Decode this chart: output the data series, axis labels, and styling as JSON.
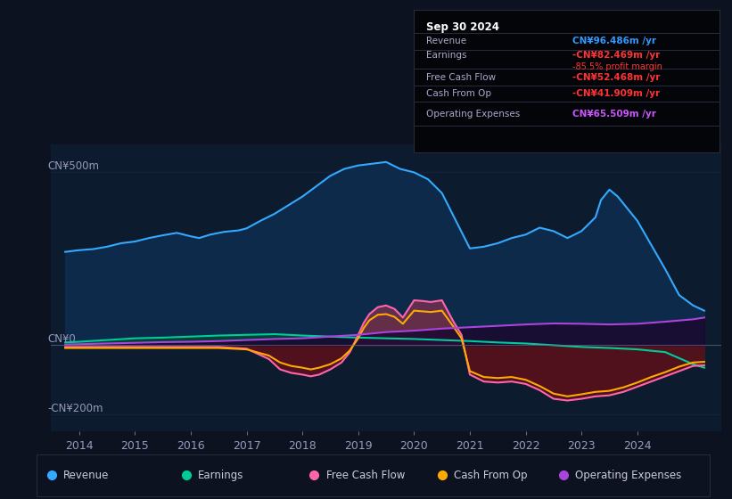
{
  "bg_color": "#0c1220",
  "plot_bg_color": "#0d1b2e",
  "grid_color": "#1e3050",
  "zero_line_color": "#666688",
  "ylabel_500": "CN¥500m",
  "ylabel_0": "CN¥0",
  "ylabel_neg200": "-CN¥200m",
  "ylim": [
    -250,
    580
  ],
  "xlim_start": 2013.5,
  "xlim_end": 2025.5,
  "xticks": [
    2014,
    2015,
    2016,
    2017,
    2018,
    2019,
    2020,
    2021,
    2022,
    2023,
    2024
  ],
  "info_box": {
    "date": "Sep 30 2024",
    "revenue_label": "Revenue",
    "revenue_value": "CN¥96.486m /yr",
    "revenue_color": "#3399ff",
    "earnings_label": "Earnings",
    "earnings_value": "-CN¥82.469m /yr",
    "earnings_color": "#ff3333",
    "margin_value": "-85.5% profit margin",
    "margin_color": "#ff3333",
    "fcf_label": "Free Cash Flow",
    "fcf_value": "-CN¥52.468m /yr",
    "fcf_color": "#ff3333",
    "cashop_label": "Cash From Op",
    "cashop_value": "-CN¥41.909m /yr",
    "cashop_color": "#ff3333",
    "opex_label": "Operating Expenses",
    "opex_value": "CN¥65.509m /yr",
    "opex_color": "#cc55ff"
  },
  "legend": [
    {
      "label": "Revenue",
      "color": "#33aaff"
    },
    {
      "label": "Earnings",
      "color": "#00cc99"
    },
    {
      "label": "Free Cash Flow",
      "color": "#ff66aa"
    },
    {
      "label": "Cash From Op",
      "color": "#ffaa00"
    },
    {
      "label": "Operating Expenses",
      "color": "#aa44dd"
    }
  ],
  "revenue_color": "#33aaff",
  "revenue_fill_color": "#0d2a4a",
  "earnings_color": "#00cc99",
  "earnings_fill_color": "#004433",
  "fcf_color": "#ff66aa",
  "cashop_color": "#ffaa00",
  "opex_color": "#aa44dd",
  "opex_fill_color": "#1a0830",
  "revenue": {
    "x": [
      2013.75,
      2014.0,
      2014.25,
      2014.5,
      2014.75,
      2015.0,
      2015.25,
      2015.5,
      2015.75,
      2016.0,
      2016.15,
      2016.35,
      2016.6,
      2016.85,
      2017.0,
      2017.25,
      2017.5,
      2017.75,
      2018.0,
      2018.25,
      2018.5,
      2018.75,
      2019.0,
      2019.25,
      2019.5,
      2019.75,
      2020.0,
      2020.25,
      2020.5,
      2020.75,
      2021.0,
      2021.25,
      2021.5,
      2021.75,
      2022.0,
      2022.25,
      2022.5,
      2022.75,
      2023.0,
      2023.25,
      2023.35,
      2023.5,
      2023.65,
      2023.75,
      2024.0,
      2024.25,
      2024.5,
      2024.75,
      2025.0,
      2025.2
    ],
    "y": [
      270,
      275,
      278,
      285,
      295,
      300,
      310,
      318,
      325,
      315,
      310,
      320,
      328,
      332,
      338,
      360,
      380,
      405,
      430,
      460,
      490,
      510,
      520,
      525,
      530,
      510,
      500,
      480,
      440,
      360,
      280,
      285,
      295,
      310,
      320,
      340,
      330,
      310,
      330,
      370,
      420,
      450,
      430,
      410,
      360,
      290,
      220,
      145,
      115,
      100
    ]
  },
  "earnings": {
    "x": [
      2013.75,
      2014.0,
      2014.5,
      2015.0,
      2015.5,
      2016.0,
      2016.5,
      2017.0,
      2017.5,
      2018.0,
      2018.5,
      2019.0,
      2019.5,
      2020.0,
      2020.5,
      2021.0,
      2021.5,
      2022.0,
      2022.5,
      2023.0,
      2023.5,
      2024.0,
      2024.5,
      2025.0,
      2025.2
    ],
    "y": [
      8,
      10,
      15,
      20,
      22,
      25,
      28,
      30,
      32,
      28,
      25,
      22,
      20,
      18,
      15,
      12,
      8,
      5,
      0,
      -5,
      -8,
      -12,
      -20,
      -55,
      -65
    ]
  },
  "fcf": {
    "x": [
      2013.75,
      2014.0,
      2014.5,
      2015.0,
      2015.5,
      2016.0,
      2016.5,
      2017.0,
      2017.4,
      2017.6,
      2017.8,
      2018.0,
      2018.15,
      2018.3,
      2018.5,
      2018.7,
      2018.85,
      2019.0,
      2019.1,
      2019.2,
      2019.35,
      2019.5,
      2019.65,
      2019.8,
      2020.0,
      2020.15,
      2020.3,
      2020.5,
      2020.7,
      2020.85,
      2021.0,
      2021.25,
      2021.5,
      2021.75,
      2022.0,
      2022.25,
      2022.5,
      2022.75,
      2023.0,
      2023.25,
      2023.5,
      2023.75,
      2024.0,
      2024.25,
      2024.5,
      2024.75,
      2025.0,
      2025.2
    ],
    "y": [
      -5,
      -5,
      -5,
      -5,
      -5,
      -5,
      -5,
      -10,
      -40,
      -70,
      -80,
      -85,
      -90,
      -85,
      -70,
      -50,
      -20,
      30,
      65,
      90,
      110,
      115,
      105,
      80,
      130,
      128,
      125,
      130,
      70,
      30,
      -85,
      -105,
      -108,
      -105,
      -112,
      -130,
      -155,
      -160,
      -155,
      -148,
      -145,
      -135,
      -120,
      -105,
      -90,
      -75,
      -60,
      -58
    ]
  },
  "cashop": {
    "x": [
      2013.75,
      2014.0,
      2014.5,
      2015.0,
      2015.5,
      2016.0,
      2016.5,
      2017.0,
      2017.4,
      2017.6,
      2017.8,
      2018.0,
      2018.15,
      2018.3,
      2018.5,
      2018.7,
      2018.85,
      2019.0,
      2019.1,
      2019.2,
      2019.35,
      2019.5,
      2019.65,
      2019.8,
      2020.0,
      2020.15,
      2020.3,
      2020.5,
      2020.7,
      2020.85,
      2021.0,
      2021.25,
      2021.5,
      2021.75,
      2022.0,
      2022.25,
      2022.5,
      2022.75,
      2023.0,
      2023.25,
      2023.5,
      2023.75,
      2024.0,
      2024.25,
      2024.5,
      2024.75,
      2025.0,
      2025.2
    ],
    "y": [
      -8,
      -8,
      -8,
      -8,
      -8,
      -8,
      -8,
      -12,
      -30,
      -50,
      -60,
      -65,
      -70,
      -65,
      -55,
      -38,
      -15,
      20,
      50,
      72,
      88,
      90,
      82,
      62,
      100,
      98,
      96,
      100,
      55,
      20,
      -75,
      -92,
      -95,
      -92,
      -100,
      -118,
      -140,
      -148,
      -142,
      -135,
      -132,
      -122,
      -108,
      -92,
      -78,
      -62,
      -50,
      -48
    ]
  },
  "opex": {
    "x": [
      2013.75,
      2014.0,
      2014.5,
      2015.0,
      2015.5,
      2016.0,
      2016.5,
      2017.0,
      2017.5,
      2018.0,
      2018.5,
      2019.0,
      2019.5,
      2020.0,
      2020.5,
      2021.0,
      2021.5,
      2022.0,
      2022.5,
      2023.0,
      2023.5,
      2024.0,
      2024.5,
      2025.0,
      2025.2
    ],
    "y": [
      2,
      3,
      5,
      7,
      9,
      10,
      12,
      15,
      18,
      20,
      25,
      30,
      38,
      42,
      48,
      52,
      56,
      60,
      63,
      62,
      60,
      62,
      68,
      75,
      80
    ]
  }
}
